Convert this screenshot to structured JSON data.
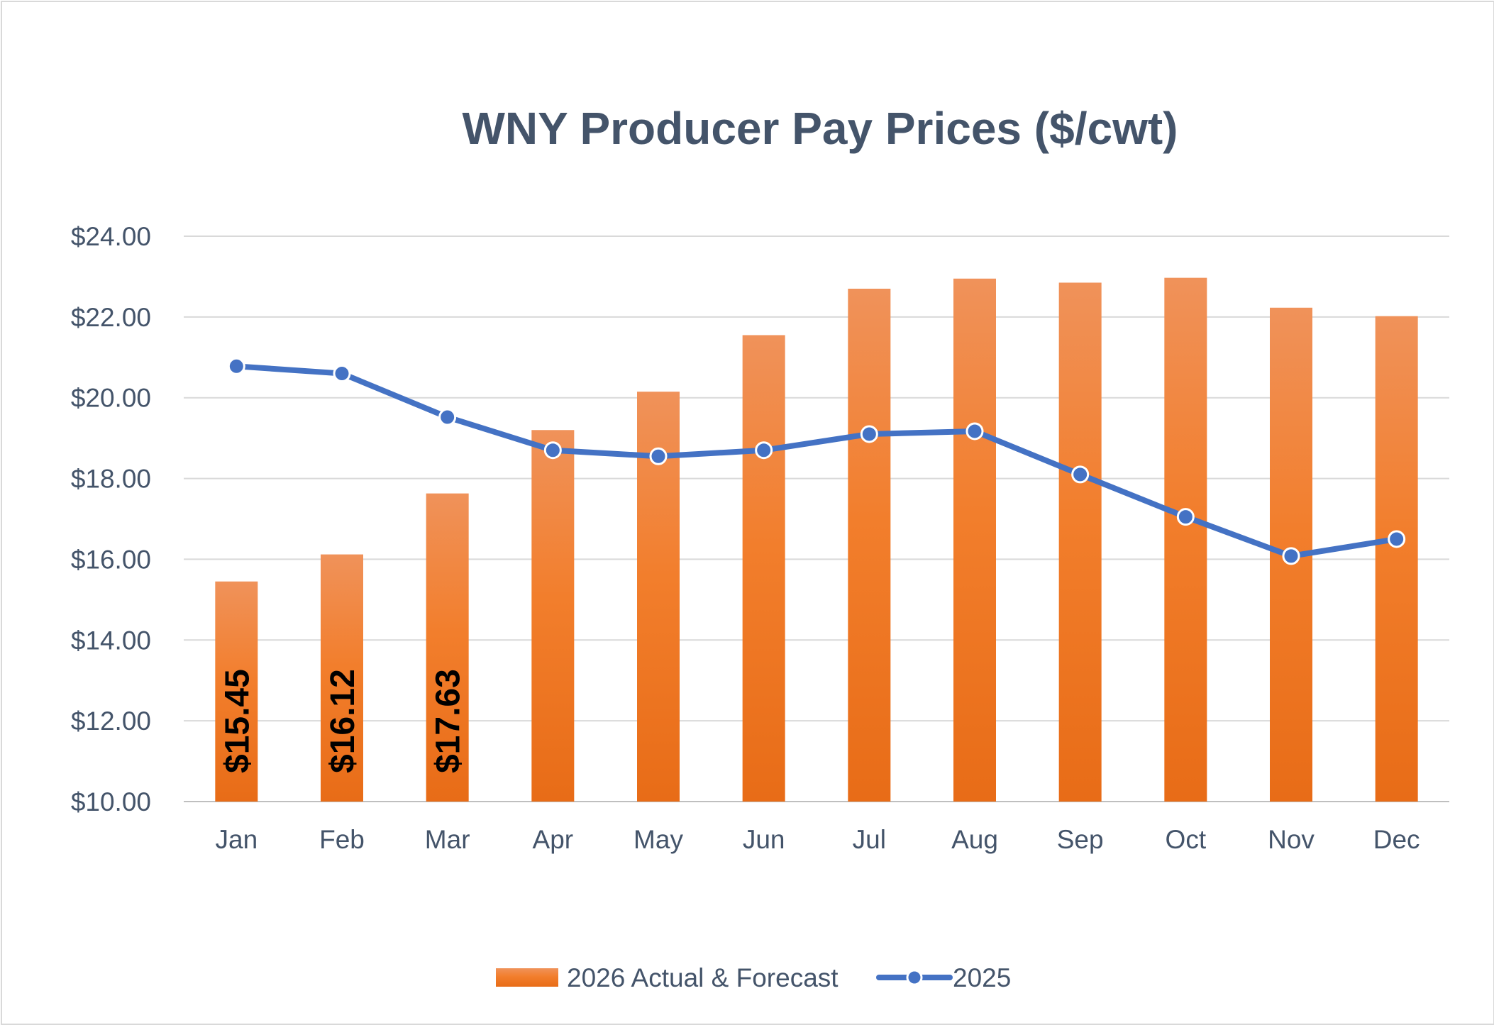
{
  "chart_data": {
    "type": "bar",
    "title": "WNY Producer Pay Prices ($/cwt)",
    "xlabel": "",
    "ylabel": "",
    "ylim": [
      10,
      24
    ],
    "y_ticks": [
      "$10.00",
      "$12.00",
      "$14.00",
      "$16.00",
      "$18.00",
      "$20.00",
      "$22.00",
      "$24.00"
    ],
    "y_tick_values": [
      10,
      12,
      14,
      16,
      18,
      20,
      22,
      24
    ],
    "grid": true,
    "legend_position": "bottom",
    "categories": [
      "Jan",
      "Feb",
      "Mar",
      "Apr",
      "May",
      "Jun",
      "Jul",
      "Aug",
      "Sep",
      "Oct",
      "Nov",
      "Dec"
    ],
    "series": [
      {
        "name": "2026 Actual & Forecast",
        "type": "bar",
        "color": "#f07a22",
        "values": [
          15.45,
          16.12,
          17.63,
          19.2,
          20.15,
          21.55,
          22.7,
          22.95,
          22.85,
          22.97,
          22.23,
          22.02
        ],
        "data_labels": [
          "$15.45",
          "$16.12",
          "$17.63",
          "",
          "",
          "",
          "",
          "",
          "",
          "",
          "",
          ""
        ]
      },
      {
        "name": "2025",
        "type": "line",
        "color": "#4472c4",
        "values": [
          20.78,
          20.6,
          19.52,
          18.7,
          18.55,
          18.7,
          19.1,
          19.17,
          18.1,
          17.05,
          16.08,
          16.5
        ]
      }
    ]
  }
}
